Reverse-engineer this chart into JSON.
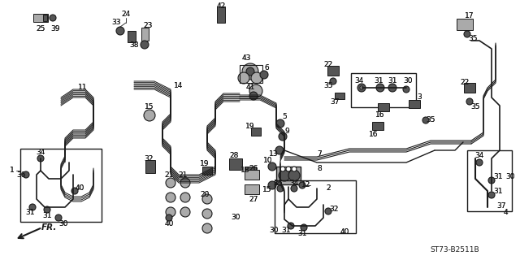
{
  "bg_color": "#ffffff",
  "diagram_code": "ST73-B2511B",
  "line_color": "#1a1a1a",
  "gray_fill": "#555555",
  "light_gray": "#aaaaaa",
  "font_size": 6.5,
  "figsize": [
    6.4,
    3.2
  ],
  "dpi": 100
}
